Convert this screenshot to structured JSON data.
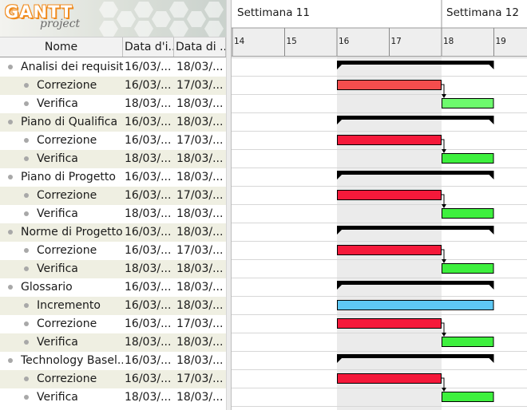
{
  "app": {
    "logo_text": "GANTT",
    "logo_subtext": "project"
  },
  "table": {
    "columns": [
      "Nome",
      "Data d'i...",
      "Data di ..."
    ],
    "rows": [
      {
        "name": "Analisi dei requisiti",
        "start": "16/03/...",
        "end": "18/03/...",
        "level": 0
      },
      {
        "name": "Correzione",
        "start": "16/03/...",
        "end": "17/03/...",
        "level": 1
      },
      {
        "name": "Verifica",
        "start": "18/03/...",
        "end": "18/03/...",
        "level": 1
      },
      {
        "name": "Piano di Qualifica",
        "start": "16/03/...",
        "end": "18/03/...",
        "level": 0
      },
      {
        "name": "Correzione",
        "start": "16/03/...",
        "end": "17/03/...",
        "level": 1
      },
      {
        "name": "Verifica",
        "start": "18/03/...",
        "end": "18/03/...",
        "level": 1
      },
      {
        "name": "Piano di Progetto",
        "start": "16/03/...",
        "end": "18/03/...",
        "level": 0
      },
      {
        "name": "Correzione",
        "start": "16/03/...",
        "end": "17/03/...",
        "level": 1
      },
      {
        "name": "Verifica",
        "start": "18/03/...",
        "end": "18/03/...",
        "level": 1
      },
      {
        "name": "Norme di Progetto",
        "start": "16/03/...",
        "end": "18/03/...",
        "level": 0
      },
      {
        "name": "Correzione",
        "start": "16/03/...",
        "end": "17/03/...",
        "level": 1
      },
      {
        "name": "Verifica",
        "start": "18/03/...",
        "end": "18/03/...",
        "level": 1
      },
      {
        "name": "Glossario",
        "start": "16/03/...",
        "end": "18/03/...",
        "level": 0
      },
      {
        "name": "Incremento",
        "start": "16/03/...",
        "end": "18/03/...",
        "level": 1
      },
      {
        "name": "Correzione",
        "start": "16/03/...",
        "end": "17/03/...",
        "level": 1
      },
      {
        "name": "Verifica",
        "start": "18/03/...",
        "end": "18/03/...",
        "level": 1
      },
      {
        "name": "Technology Basel...",
        "start": "16/03/...",
        "end": "18/03/...",
        "level": 0
      },
      {
        "name": "Correzione",
        "start": "16/03/...",
        "end": "17/03/...",
        "level": 1
      },
      {
        "name": "Verifica",
        "start": "18/03/...",
        "end": "18/03/...",
        "level": 1
      }
    ]
  },
  "timeline": {
    "weeks": [
      {
        "label": "Settimana  11",
        "start_day": 14
      },
      {
        "label": "Settimana  12",
        "start_day": 18
      }
    ],
    "days": [
      "14",
      "15",
      "16",
      "17",
      "18",
      "19"
    ],
    "first_day": 14,
    "highlight_days": [
      16,
      17
    ]
  },
  "bars": [
    {
      "row": 0,
      "type": "summary",
      "start": 16,
      "end": 19
    },
    {
      "row": 1,
      "type": "task",
      "color": "#f44d4d",
      "start": 16,
      "end": 18
    },
    {
      "row": 2,
      "type": "task",
      "color": "#6dfa6d",
      "start": 18,
      "end": 19
    },
    {
      "row": 3,
      "type": "summary",
      "start": 16,
      "end": 19
    },
    {
      "row": 4,
      "type": "task",
      "color": "#f5193a",
      "start": 16,
      "end": 18
    },
    {
      "row": 5,
      "type": "task",
      "color": "#3ef03e",
      "start": 18,
      "end": 19
    },
    {
      "row": 6,
      "type": "summary",
      "start": 16,
      "end": 19
    },
    {
      "row": 7,
      "type": "task",
      "color": "#f5193a",
      "start": 16,
      "end": 18
    },
    {
      "row": 8,
      "type": "task",
      "color": "#3ef03e",
      "start": 18,
      "end": 19
    },
    {
      "row": 9,
      "type": "summary",
      "start": 16,
      "end": 19
    },
    {
      "row": 10,
      "type": "task",
      "color": "#f5193a",
      "start": 16,
      "end": 18
    },
    {
      "row": 11,
      "type": "task",
      "color": "#3ef03e",
      "start": 18,
      "end": 19
    },
    {
      "row": 12,
      "type": "summary",
      "start": 16,
      "end": 19
    },
    {
      "row": 13,
      "type": "task",
      "color": "#5ec8f5",
      "start": 16,
      "end": 19
    },
    {
      "row": 14,
      "type": "task",
      "color": "#f5193a",
      "start": 16,
      "end": 18
    },
    {
      "row": 15,
      "type": "task",
      "color": "#3ef03e",
      "start": 18,
      "end": 19
    },
    {
      "row": 16,
      "type": "summary",
      "start": 16,
      "end": 19
    },
    {
      "row": 17,
      "type": "task",
      "color": "#f5193a",
      "start": 16,
      "end": 18
    },
    {
      "row": 18,
      "type": "task",
      "color": "#3ef03e",
      "start": 18,
      "end": 19
    }
  ],
  "dependencies": [
    {
      "from": 1,
      "to": 2
    },
    {
      "from": 4,
      "to": 5
    },
    {
      "from": 7,
      "to": 8
    },
    {
      "from": 10,
      "to": 11
    },
    {
      "from": 14,
      "to": 15
    },
    {
      "from": 17,
      "to": 18
    }
  ],
  "colors": {
    "row_alt": "#efefe2",
    "weekend_shade": "#ebebeb",
    "summary": "#000000"
  }
}
